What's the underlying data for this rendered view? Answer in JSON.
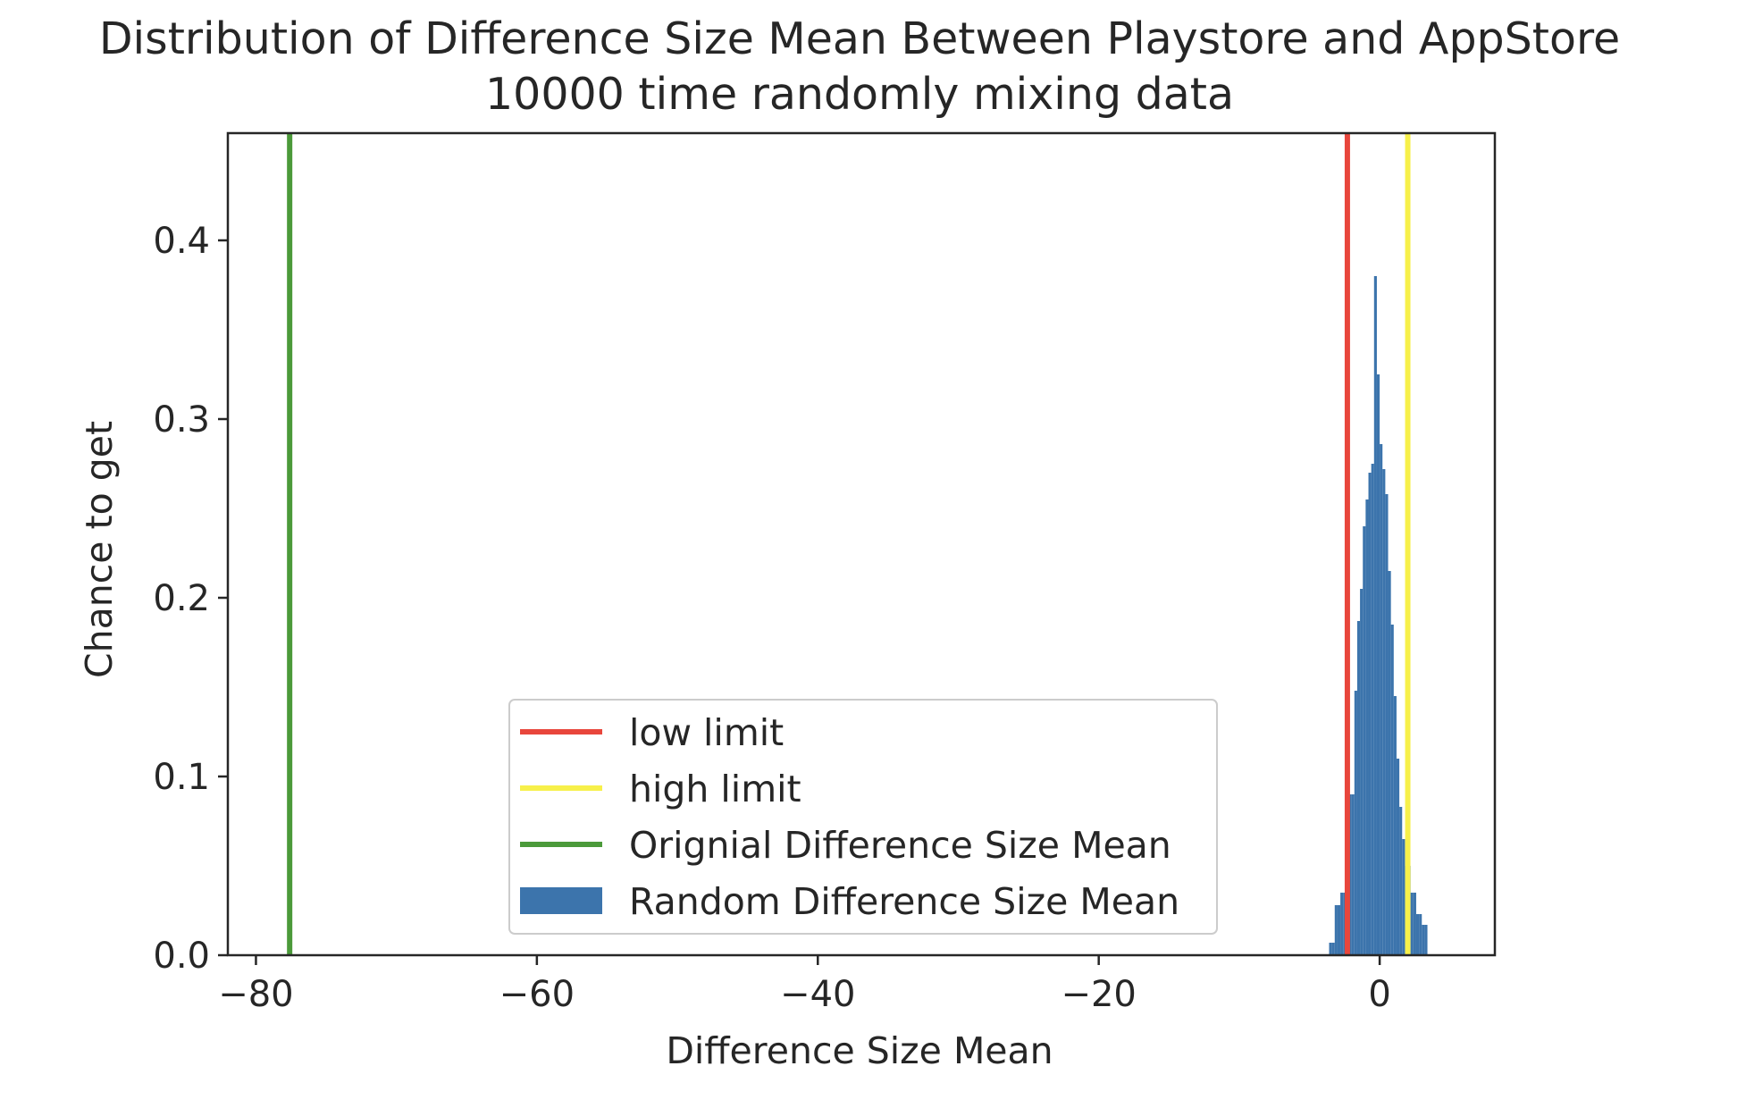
{
  "chart_data": {
    "type": "bar",
    "title": "Distribution of Difference Size Mean Between Playstore and AppStore",
    "subtitle": "10000 time randomly mixing data",
    "xlabel": "Difference Size Mean",
    "ylabel": "Chance to get",
    "xlim": [
      -82,
      8.2
    ],
    "ylim": [
      0,
      0.46
    ],
    "x_ticks": [
      -80,
      -60,
      -40,
      -20,
      0
    ],
    "x_tick_labels": [
      "−80",
      "−60",
      "−40",
      "−20",
      "0"
    ],
    "y_ticks": [
      0.0,
      0.1,
      0.2,
      0.3,
      0.4
    ],
    "y_tick_labels": [
      "0.0",
      "0.1",
      "0.2",
      "0.3",
      "0.4"
    ],
    "grid": false,
    "legend_position": "lower-center",
    "lines": [
      {
        "name": "low limit",
        "x": -2.3,
        "color": "#e8463c"
      },
      {
        "name": "high limit",
        "x": 2.0,
        "color": "#f7f04a"
      },
      {
        "name": "Orignial Difference Size Mean",
        "x": -77.6,
        "color": "#4b9a3a"
      }
    ],
    "histogram": {
      "name": "Random Difference Size Mean",
      "color": "#3c74ac",
      "bin_width": 0.2,
      "bin_starts": [
        -3.6,
        -3.4,
        -3.2,
        -3.0,
        -2.8,
        -2.6,
        -2.4,
        -2.2,
        -2.0,
        -1.8,
        -1.6,
        -1.4,
        -1.2,
        -1.0,
        -0.8,
        -0.6,
        -0.4,
        -0.2,
        0.0,
        0.2,
        0.4,
        0.6,
        0.8,
        1.0,
        1.2,
        1.4,
        1.6,
        1.8,
        2.0,
        2.2,
        2.4,
        2.6,
        2.8,
        3.0,
        3.2
      ],
      "values": [
        0.007,
        0.007,
        0.028,
        0.028,
        0.035,
        0.035,
        0.063,
        0.09,
        0.09,
        0.148,
        0.187,
        0.205,
        0.24,
        0.255,
        0.27,
        0.275,
        0.38,
        0.325,
        0.286,
        0.272,
        0.258,
        0.215,
        0.185,
        0.145,
        0.11,
        0.083,
        0.065,
        0.05,
        0.05,
        0.035,
        0.035,
        0.023,
        0.023,
        0.017,
        0.017
      ]
    }
  }
}
